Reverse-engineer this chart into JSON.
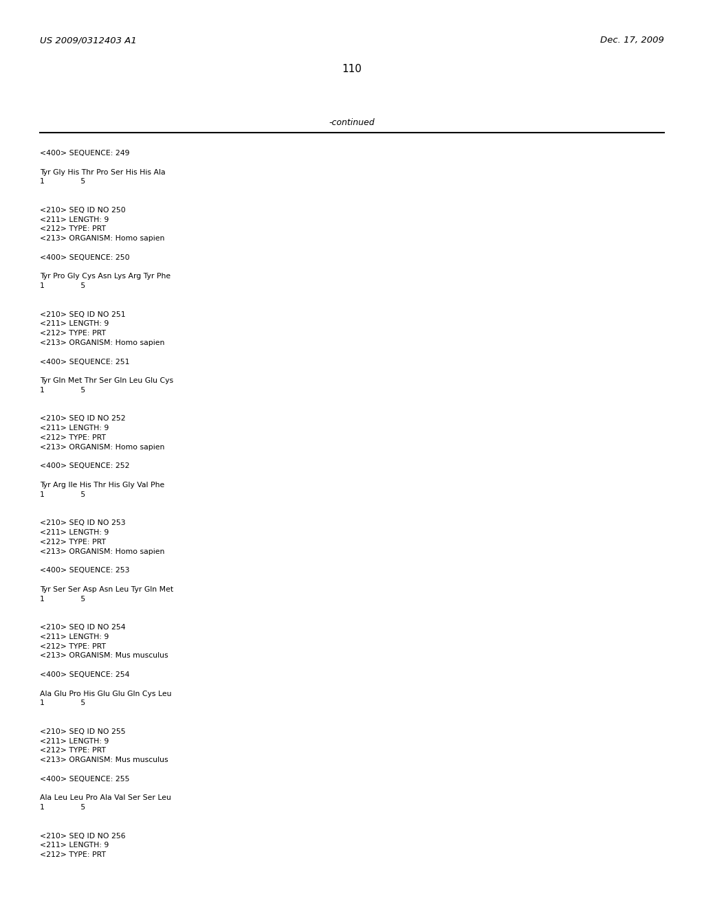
{
  "header_left": "US 2009/0312403 A1",
  "header_right": "Dec. 17, 2009",
  "page_number": "110",
  "continued_label": "-continued",
  "background_color": "#ffffff",
  "text_color": "#000000",
  "font_size_header": 9.5,
  "font_size_page": 11,
  "font_size_continued": 9,
  "font_size_body": 7.8,
  "content": [
    "<400> SEQUENCE: 249",
    "",
    "Tyr Gly His Thr Pro Ser His His Ala",
    "1               5",
    "",
    "",
    "<210> SEQ ID NO 250",
    "<211> LENGTH: 9",
    "<212> TYPE: PRT",
    "<213> ORGANISM: Homo sapien",
    "",
    "<400> SEQUENCE: 250",
    "",
    "Tyr Pro Gly Cys Asn Lys Arg Tyr Phe",
    "1               5",
    "",
    "",
    "<210> SEQ ID NO 251",
    "<211> LENGTH: 9",
    "<212> TYPE: PRT",
    "<213> ORGANISM: Homo sapien",
    "",
    "<400> SEQUENCE: 251",
    "",
    "Tyr Gln Met Thr Ser Gln Leu Glu Cys",
    "1               5",
    "",
    "",
    "<210> SEQ ID NO 252",
    "<211> LENGTH: 9",
    "<212> TYPE: PRT",
    "<213> ORGANISM: Homo sapien",
    "",
    "<400> SEQUENCE: 252",
    "",
    "Tyr Arg Ile His Thr His Gly Val Phe",
    "1               5",
    "",
    "",
    "<210> SEQ ID NO 253",
    "<211> LENGTH: 9",
    "<212> TYPE: PRT",
    "<213> ORGANISM: Homo sapien",
    "",
    "<400> SEQUENCE: 253",
    "",
    "Tyr Ser Ser Asp Asn Leu Tyr Gln Met",
    "1               5",
    "",
    "",
    "<210> SEQ ID NO 254",
    "<211> LENGTH: 9",
    "<212> TYPE: PRT",
    "<213> ORGANISM: Mus musculus",
    "",
    "<400> SEQUENCE: 254",
    "",
    "Ala Glu Pro His Glu Glu Gln Cys Leu",
    "1               5",
    "",
    "",
    "<210> SEQ ID NO 255",
    "<211> LENGTH: 9",
    "<212> TYPE: PRT",
    "<213> ORGANISM: Mus musculus",
    "",
    "<400> SEQUENCE: 255",
    "",
    "Ala Leu Leu Pro Ala Val Ser Ser Leu",
    "1               5",
    "",
    "",
    "<210> SEQ ID NO 256",
    "<211> LENGTH: 9",
    "<212> TYPE: PRT"
  ]
}
